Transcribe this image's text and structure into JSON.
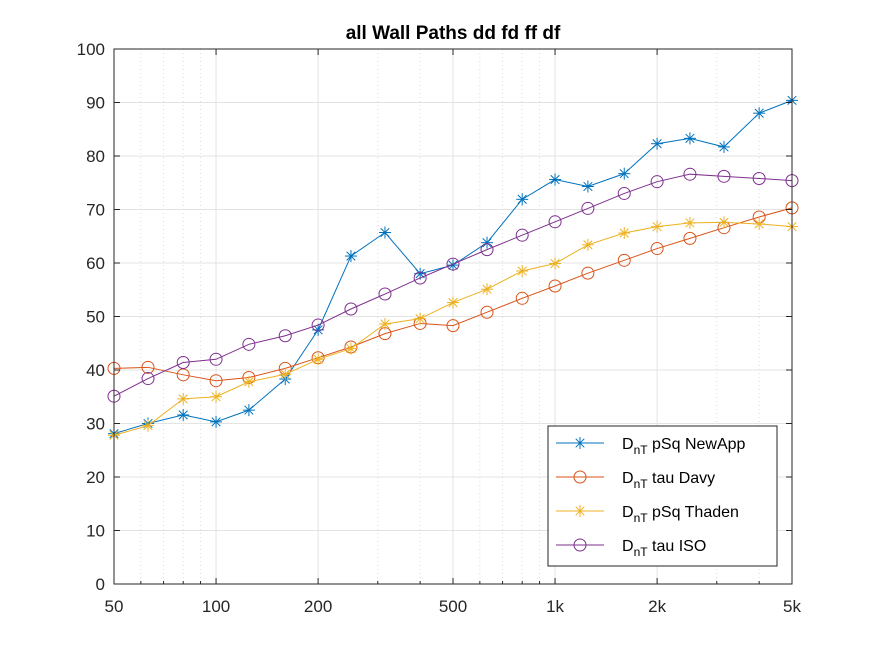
{
  "chart_data": {
    "type": "line",
    "title": "all Wall Paths dd fd ff df",
    "xlabel": "",
    "ylabel": "",
    "xscale": "log",
    "xlim": [
      50,
      5000
    ],
    "ylim": [
      0,
      100
    ],
    "grid": true,
    "legend_position": "bottom-right",
    "x_ticks": [
      50,
      100,
      200,
      500,
      1000,
      2000,
      5000
    ],
    "x_tick_labels": [
      "50",
      "100",
      "200",
      "500",
      "1k",
      "2k",
      "5k"
    ],
    "y_ticks": [
      0,
      10,
      20,
      30,
      40,
      50,
      60,
      70,
      80,
      90,
      100
    ],
    "y_tick_labels": [
      "0",
      "10",
      "20",
      "30",
      "40",
      "50",
      "60",
      "70",
      "80",
      "90",
      "100"
    ],
    "x": [
      50,
      63,
      80,
      100,
      125,
      160,
      200,
      250,
      315,
      400,
      500,
      630,
      800,
      1000,
      1250,
      1600,
      2000,
      2500,
      3150,
      4000,
      5000
    ],
    "series": [
      {
        "name_main": "D",
        "name_sub": "nT",
        "name_rest": " pSq NewApp",
        "color": "#0072BD",
        "marker": "asterisk",
        "values": [
          28.1,
          30.0,
          31.6,
          30.3,
          32.5,
          38.3,
          47.5,
          61.3,
          65.7,
          58.0,
          59.6,
          63.8,
          71.9,
          75.6,
          74.3,
          76.7,
          82.3,
          83.3,
          81.7,
          88.0,
          90.4
        ]
      },
      {
        "name_main": "D",
        "name_sub": "nT",
        "name_rest": " tau Davy",
        "color": "#D95319",
        "marker": "circle",
        "values": [
          40.3,
          40.5,
          39.1,
          38.0,
          38.6,
          40.3,
          42.3,
          44.3,
          46.8,
          48.7,
          48.3,
          50.8,
          53.4,
          55.7,
          58.1,
          60.5,
          62.7,
          64.6,
          66.6,
          68.6,
          70.3
        ]
      },
      {
        "name_main": "D",
        "name_sub": "nT",
        "name_rest": " pSq Thaden",
        "color": "#EDB120",
        "marker": "asterisk",
        "values": [
          27.8,
          29.6,
          34.6,
          35.0,
          37.8,
          39.2,
          42.0,
          44.0,
          48.6,
          49.6,
          52.6,
          55.1,
          58.5,
          59.9,
          63.4,
          65.6,
          66.8,
          67.5,
          67.6,
          67.3,
          66.8
        ]
      },
      {
        "name_main": "D",
        "name_sub": "nT",
        "name_rest": " tau ISO",
        "color": "#7E2F8E",
        "marker": "circle",
        "values": [
          35.1,
          38.4,
          41.4,
          42.0,
          44.8,
          46.4,
          48.4,
          51.4,
          54.2,
          57.2,
          59.8,
          62.5,
          65.2,
          67.7,
          70.2,
          73.0,
          75.2,
          76.6,
          76.2,
          75.8,
          75.4
        ]
      }
    ]
  }
}
